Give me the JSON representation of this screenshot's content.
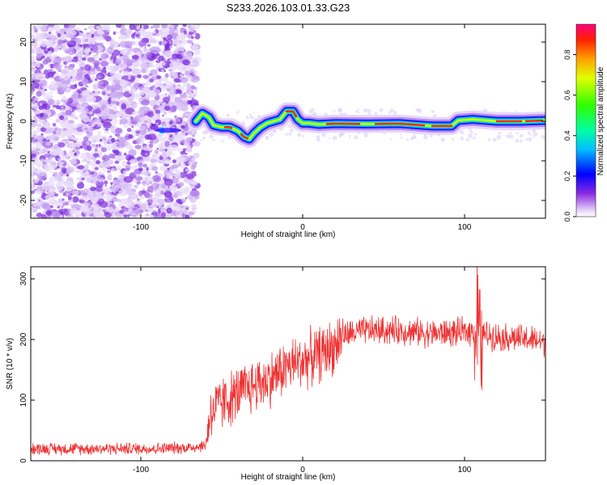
{
  "title": "S233.2026.103.01.33.G23",
  "chart_data": [
    {
      "id": "spectrogram",
      "type": "heatmap",
      "xlabel": "Height of straight line (km)",
      "ylabel": "Frequency (Hz)",
      "xlim": [
        -168,
        150
      ],
      "ylim": [
        -24.5,
        24.5
      ],
      "xticks": [
        -100,
        0,
        100
      ],
      "yticks": [
        -20,
        -10,
        0,
        10,
        20
      ],
      "noise_region_x": [
        -168,
        -65
      ],
      "signal_onset_x": -65,
      "ridge": {
        "x": [
          -66,
          -62,
          -58,
          -55,
          -50,
          -45,
          -40,
          -36,
          -33,
          -30,
          -26,
          -22,
          -18,
          -14,
          -10,
          -6,
          -3,
          0,
          4,
          10,
          20,
          40,
          60,
          80,
          92,
          96,
          105,
          120,
          135,
          150
        ],
        "freq": [
          0,
          2,
          1,
          -1,
          -1.5,
          -1.5,
          -2.5,
          -4,
          -4.5,
          -3,
          -1.5,
          -0.5,
          0,
          0.5,
          2.5,
          2.5,
          0.5,
          -0.5,
          -0.5,
          -0.8,
          -0.6,
          -0.7,
          -0.6,
          -1.2,
          -1.2,
          0.2,
          0.5,
          0.0,
          0.0,
          0.2
        ]
      },
      "colorbar": {
        "label": "Normalized spectral amplitude",
        "range": [
          0,
          0.95
        ],
        "ticks": [
          "0.0",
          "0.2",
          "0.4",
          "0.6",
          "0.8"
        ]
      }
    },
    {
      "id": "snr",
      "type": "line",
      "xlabel": "Height of straight line (km)",
      "ylabel": "SNR (10 * v/v)",
      "xlim": [
        -168,
        150
      ],
      "ylim": [
        0,
        320
      ],
      "xticks": [
        -100,
        0,
        100
      ],
      "yticks": [
        0,
        100,
        200,
        300
      ],
      "color": "#ee3333",
      "series": [
        {
          "name": "SNR",
          "x": [
            -168,
            -150,
            -130,
            -110,
            -90,
            -70,
            -60,
            -57,
            -50,
            -40,
            -30,
            -20,
            -10,
            0,
            10,
            20,
            24,
            30,
            40,
            60,
            80,
            100,
            107,
            110,
            120,
            140,
            150
          ],
          "y": [
            20,
            20,
            20,
            20,
            20,
            22,
            25,
            80,
            95,
            110,
            125,
            135,
            155,
            165,
            175,
            190,
            205,
            210,
            215,
            215,
            210,
            212,
            215,
            210,
            205,
            200,
            195
          ]
        }
      ]
    }
  ]
}
